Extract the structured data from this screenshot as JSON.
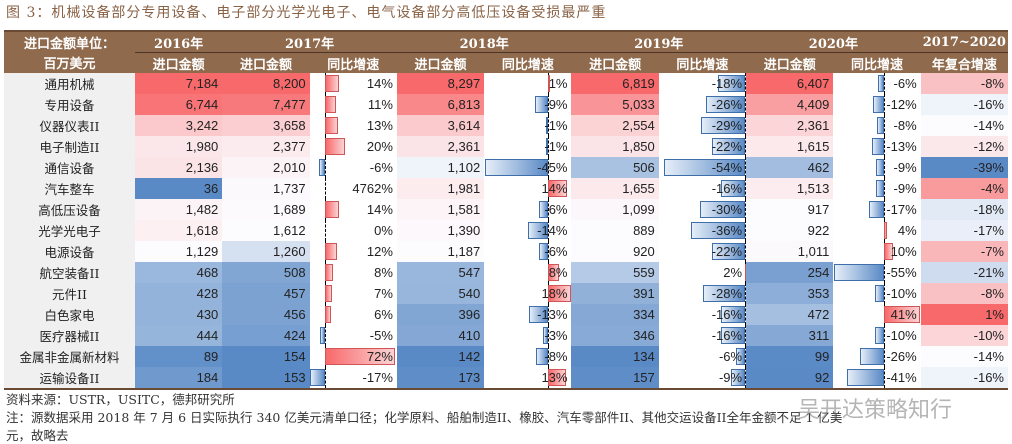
{
  "title": "图 3：机械设备部分专用设备、电子部分光学光电子、电气设备部分高低压设备受损最严重",
  "header": {
    "unit_line1": "进口金额单位：",
    "unit_line2": "百万美元",
    "years": [
      "2016年",
      "2017年",
      "2018年",
      "2019年",
      "2020年"
    ],
    "cagr_line1": "2017~2020",
    "cagr_line2": "年复合增速",
    "amount": "进口金额",
    "yoy": "同比增速"
  },
  "chart_data": {
    "type": "table",
    "columns": [
      "2016年进口金额",
      "2017年进口金额",
      "2017年同比增速",
      "2018年进口金额",
      "2018年同比增速",
      "2019年进口金额",
      "2019年同比增速",
      "2020年进口金额",
      "2020年同比增速",
      "2017~2020年复合增速"
    ],
    "rows": [
      {
        "name": "通用机械",
        "v": [
          "7,184",
          "8,200",
          "14%",
          "8,297",
          "1%",
          "6,819",
          "-18%",
          "6,407",
          "-6%",
          "-8%"
        ]
      },
      {
        "name": "专用设备",
        "v": [
          "6,744",
          "7,477",
          "11%",
          "6,813",
          "-9%",
          "5,033",
          "-26%",
          "4,409",
          "-12%",
          "-16%"
        ]
      },
      {
        "name": "仪器仪表II",
        "v": [
          "3,242",
          "3,658",
          "13%",
          "3,614",
          "-1%",
          "2,554",
          "-29%",
          "2,361",
          "-8%",
          "-14%"
        ]
      },
      {
        "name": "电子制造II",
        "v": [
          "1,980",
          "2,377",
          "20%",
          "2,361",
          "-1%",
          "1,850",
          "-22%",
          "1,615",
          "-13%",
          "-12%"
        ]
      },
      {
        "name": "通信设备",
        "v": [
          "2,136",
          "2,010",
          "-6%",
          "1,102",
          "-45%",
          "506",
          "-54%",
          "462",
          "-9%",
          "-39%"
        ]
      },
      {
        "name": "汽车整车",
        "v": [
          "36",
          "1,737",
          "4762%",
          "1,981",
          "14%",
          "1,655",
          "-16%",
          "1,513",
          "-9%",
          "-4%"
        ]
      },
      {
        "name": "高低压设备",
        "v": [
          "1,482",
          "1,689",
          "14%",
          "1,581",
          "-6%",
          "1,099",
          "-30%",
          "917",
          "-17%",
          "-18%"
        ]
      },
      {
        "name": "光学光电子",
        "v": [
          "1,618",
          "1,612",
          "0%",
          "1,390",
          "-14%",
          "889",
          "-36%",
          "922",
          "4%",
          "-17%"
        ]
      },
      {
        "name": "电源设备",
        "v": [
          "1,129",
          "1,260",
          "12%",
          "1,187",
          "-6%",
          "920",
          "-22%",
          "1,011",
          "10%",
          "-7%"
        ]
      },
      {
        "name": "航空装备II",
        "v": [
          "468",
          "508",
          "8%",
          "547",
          "8%",
          "559",
          "2%",
          "254",
          "-55%",
          "-21%"
        ]
      },
      {
        "name": "元件II",
        "v": [
          "428",
          "457",
          "7%",
          "540",
          "18%",
          "391",
          "-28%",
          "353",
          "-10%",
          "-8%"
        ]
      },
      {
        "name": "白色家电",
        "v": [
          "430",
          "456",
          "6%",
          "396",
          "-13%",
          "334",
          "-16%",
          "472",
          "41%",
          "1%"
        ]
      },
      {
        "name": "医疗器械II",
        "v": [
          "444",
          "424",
          "-5%",
          "410",
          "-3%",
          "346",
          "-16%",
          "311",
          "-10%",
          "-10%"
        ]
      },
      {
        "name": "金属非金属新材料",
        "v": [
          "89",
          "154",
          "72%",
          "142",
          "-8%",
          "134",
          "-6%",
          "99",
          "-26%",
          "-14%"
        ]
      },
      {
        "name": "运输设备II",
        "v": [
          "184",
          "153",
          "-17%",
          "173",
          "13%",
          "157",
          "-9%",
          "92",
          "-41%",
          "-16%"
        ]
      }
    ]
  },
  "colors": {
    "header": "#8f6a4c",
    "high": "#f8696b",
    "mid": "#fcfcff",
    "low": "#5a8ac6"
  },
  "footer": {
    "source": "资料来源：USTR，USITC，德邦研究所",
    "note1": "注：源数据采用 2018 年 7 月 6 日实际执行 340 亿美元清单口径；化学原料、船舶制造II、橡胶、汽车零部件II、其他交运设备II全年金额不足 1 亿美",
    "note2": "元，故略去"
  },
  "watermark": "吴开达策略知行"
}
